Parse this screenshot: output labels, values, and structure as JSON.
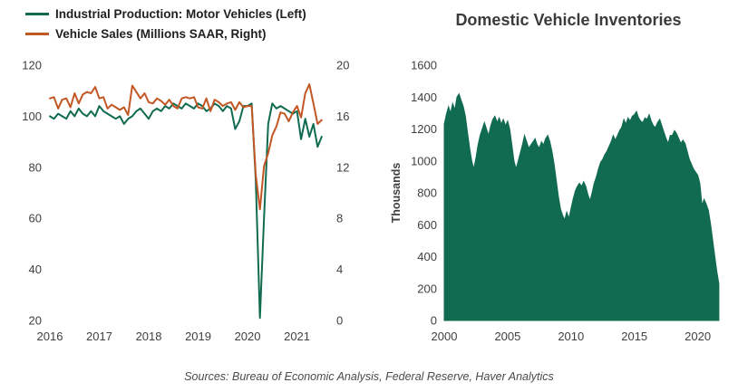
{
  "chart_data": [
    {
      "type": "line",
      "legend": [
        {
          "label": "Industrial Production: Motor Vehicles (Left)",
          "color": "#106B50"
        },
        {
          "label": "Vehicle Sales (Millions SAAR, Right)",
          "color": "#C25724"
        }
      ],
      "x_start": 2016.0,
      "x_step": 0.083333,
      "x_ticks": [
        2016,
        2017,
        2018,
        2019,
        2020,
        2021
      ],
      "left_axis": {
        "min": 20,
        "max": 120,
        "ticks": [
          120,
          100,
          80,
          60,
          40,
          20
        ]
      },
      "right_axis": {
        "min": 0,
        "max": 20,
        "ticks": [
          20,
          16,
          12,
          8,
          4,
          0
        ]
      },
      "series": [
        {
          "name": "Industrial Production: Motor Vehicles",
          "axis": "left",
          "color": "#106B50",
          "values": [
            100,
            99,
            101,
            100,
            99,
            102,
            100,
            103,
            101,
            100,
            102,
            100,
            104,
            102,
            101,
            100,
            99,
            100,
            97,
            99,
            100,
            102,
            103,
            101,
            99,
            102,
            103,
            102,
            104,
            103,
            105,
            104,
            103,
            105,
            104,
            103,
            105,
            104,
            102,
            103,
            105,
            104,
            102,
            104,
            103,
            95,
            98,
            104,
            104,
            105,
            75,
            21,
            60,
            97,
            105,
            103,
            104,
            103,
            102,
            101,
            102,
            91,
            99,
            92,
            97,
            88,
            92
          ]
        },
        {
          "name": "Vehicle Sales (Millions SAAR)",
          "axis": "right",
          "color": "#C25724",
          "values": [
            17.4,
            17.5,
            16.6,
            17.3,
            17.4,
            16.7,
            17.8,
            17.0,
            17.7,
            17.9,
            17.8,
            18.3,
            17.4,
            17.5,
            16.6,
            16.9,
            16.7,
            16.5,
            16.7,
            16.1,
            18.4,
            17.9,
            17.4,
            17.8,
            17.1,
            17.0,
            17.4,
            17.2,
            16.9,
            17.3,
            16.8,
            16.6,
            17.4,
            17.5,
            17.4,
            17.5,
            16.7,
            16.6,
            17.4,
            16.4,
            17.3,
            17.1,
            16.8,
            17.0,
            17.1,
            16.5,
            17.1,
            16.7,
            16.8,
            16.8,
            11.4,
            8.7,
            12.1,
            13.1,
            14.5,
            15.2,
            16.3,
            16.2,
            15.6,
            16.3,
            16.8,
            15.9,
            17.8,
            18.5,
            17.0,
            15.4,
            15.7
          ]
        }
      ]
    },
    {
      "type": "area",
      "title": "Domestic Vehicle Inventories",
      "ylabel": "Thousands",
      "color": "#106B50",
      "x_start": 2000.0,
      "x_step": 0.166667,
      "x_ticks": [
        2000,
        2005,
        2010,
        2015,
        2020
      ],
      "y_axis": {
        "min": 0,
        "max": 1600,
        "ticks": [
          1600,
          1400,
          1200,
          1000,
          800,
          600,
          400,
          200,
          0
        ]
      },
      "values": [
        1230,
        1290,
        1340,
        1300,
        1360,
        1320,
        1400,
        1420,
        1380,
        1340,
        1280,
        1180,
        1080,
        1000,
        950,
        1020,
        1100,
        1160,
        1200,
        1240,
        1200,
        1160,
        1220,
        1260,
        1280,
        1240,
        1270,
        1230,
        1260,
        1220,
        1250,
        1200,
        1100,
        1000,
        950,
        1000,
        1050,
        1100,
        1160,
        1120,
        1080,
        1100,
        1120,
        1140,
        1100,
        1080,
        1120,
        1100,
        1140,
        1160,
        1120,
        1060,
        980,
        880,
        780,
        700,
        660,
        630,
        680,
        640,
        700,
        760,
        810,
        840,
        860,
        840,
        870,
        840,
        790,
        750,
        800,
        860,
        900,
        950,
        990,
        1010,
        1040,
        1060,
        1090,
        1120,
        1160,
        1130,
        1160,
        1190,
        1210,
        1260,
        1230,
        1270,
        1250,
        1280,
        1290,
        1310,
        1270,
        1250,
        1240,
        1270,
        1260,
        1290,
        1250,
        1220,
        1210,
        1240,
        1260,
        1220,
        1180,
        1140,
        1110,
        1160,
        1160,
        1190,
        1170,
        1140,
        1110,
        1130,
        1110,
        1060,
        1010,
        980,
        950,
        930,
        910,
        860,
        720,
        760,
        730,
        690,
        610,
        510,
        410,
        310,
        230
      ]
    }
  ],
  "footer": {
    "sources": "Sources: Bureau of Economic Analysis, Federal Reserve, Haver Analytics"
  }
}
